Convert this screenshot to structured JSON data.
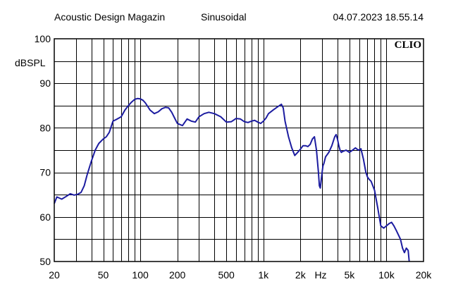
{
  "header": {
    "publisher": "Acoustic Design Magazin",
    "mode": "Sinusoidal",
    "timestamp": "04.07.2023 18.55.14"
  },
  "brand": "CLIO",
  "colors": {
    "trace": "#1c1ca0",
    "grid": "#000000",
    "background": "#ffffff"
  },
  "chart_data": {
    "type": "line",
    "xscale": "log",
    "xlim": [
      20,
      20000
    ],
    "ylim": [
      50,
      100
    ],
    "ylabel": "dBSPL",
    "xunit": "Hz",
    "grid": true,
    "x_ticks": [
      {
        "value": 20,
        "label": "20"
      },
      {
        "value": 50,
        "label": "50"
      },
      {
        "value": 100,
        "label": "100"
      },
      {
        "value": 200,
        "label": "200"
      },
      {
        "value": 500,
        "label": "500"
      },
      {
        "value": 1000,
        "label": "1k"
      },
      {
        "value": 2000,
        "label": "2k"
      },
      {
        "value": 5000,
        "label": "5k"
      },
      {
        "value": 10000,
        "label": "10k"
      },
      {
        "value": 20000,
        "label": "20k"
      }
    ],
    "y_ticks": [
      100,
      90,
      80,
      70,
      60,
      50
    ],
    "series": [
      {
        "x": [
          20,
          21,
          23,
          25,
          27,
          29,
          31,
          33,
          35,
          37,
          40,
          43,
          46,
          50,
          53,
          56,
          60,
          65,
          70,
          75,
          80,
          85,
          90,
          95,
          100,
          105,
          110,
          120,
          130,
          140,
          150,
          160,
          170,
          180,
          190,
          200,
          220,
          240,
          260,
          280,
          300,
          330,
          360,
          400,
          450,
          500,
          550,
          600,
          650,
          700,
          750,
          800,
          850,
          900,
          950,
          1000,
          1050,
          1100,
          1150,
          1200,
          1300,
          1400,
          1450,
          1500,
          1600,
          1700,
          1800,
          1900,
          2000,
          2100,
          2200,
          2300,
          2400,
          2500,
          2600,
          2700,
          2800,
          2850,
          2900,
          3000,
          3050,
          3100,
          3200,
          3400,
          3600,
          3800,
          3900,
          4000,
          4100,
          4200,
          4300,
          4400,
          4500,
          4700,
          5000,
          5300,
          5600,
          5900,
          6200,
          6500,
          6800,
          7000,
          7200,
          7500,
          8000,
          8500,
          9000,
          9500,
          10000,
          10500,
          11000,
          11500,
          12000,
          12500,
          13000,
          13500,
          14000,
          14500,
          15000,
          15300
        ],
        "y": [
          63.0,
          64.5,
          64.0,
          64.6,
          65.2,
          64.9,
          65.1,
          65.5,
          67.0,
          69.5,
          72.5,
          75.0,
          76.5,
          77.5,
          78.0,
          79.0,
          81.5,
          82.0,
          82.5,
          84.0,
          85.0,
          85.8,
          86.4,
          86.6,
          86.5,
          86.2,
          85.6,
          84.0,
          83.2,
          83.6,
          84.3,
          84.6,
          84.5,
          83.5,
          82.2,
          81.0,
          80.5,
          82.0,
          81.5,
          81.3,
          82.5,
          83.2,
          83.5,
          83.2,
          82.5,
          81.3,
          81.4,
          82.1,
          82.0,
          81.4,
          81.2,
          81.5,
          81.7,
          81.3,
          81.0,
          81.5,
          82.2,
          83.2,
          83.6,
          84.0,
          84.7,
          85.3,
          84.5,
          81.5,
          78.0,
          75.5,
          73.8,
          74.5,
          75.2,
          76.0,
          76.0,
          75.8,
          76.3,
          77.5,
          78.0,
          75.0,
          70.0,
          67.0,
          66.5,
          70.0,
          71.5,
          72.0,
          73.5,
          74.5,
          76.0,
          78.0,
          78.5,
          77.5,
          76.0,
          75.0,
          74.5,
          74.7,
          74.8,
          75.0,
          74.5,
          75.0,
          75.5,
          75.0,
          75.3,
          73.0,
          70.0,
          69.0,
          68.5,
          68.0,
          66.0,
          62.0,
          58.0,
          57.5,
          58.0,
          58.5,
          58.8,
          58.0,
          57.0,
          56.0,
          55.0,
          53.0,
          52.0,
          53.0,
          52.5,
          50.0
        ]
      }
    ]
  }
}
